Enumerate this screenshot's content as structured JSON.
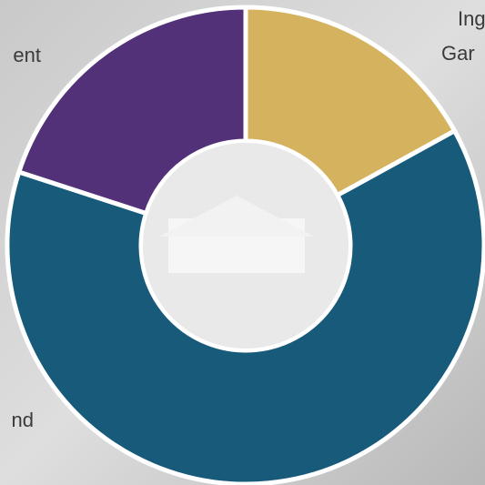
{
  "chart_data": {
    "type": "donut",
    "categories": [
      [
        "Ing",
        "Gar"
      ],
      [
        "nd"
      ],
      [
        "ent"
      ]
    ],
    "values": [
      17,
      63,
      20
    ],
    "colors": [
      "#d4b25e",
      "#175a7a",
      "#533178"
    ]
  }
}
